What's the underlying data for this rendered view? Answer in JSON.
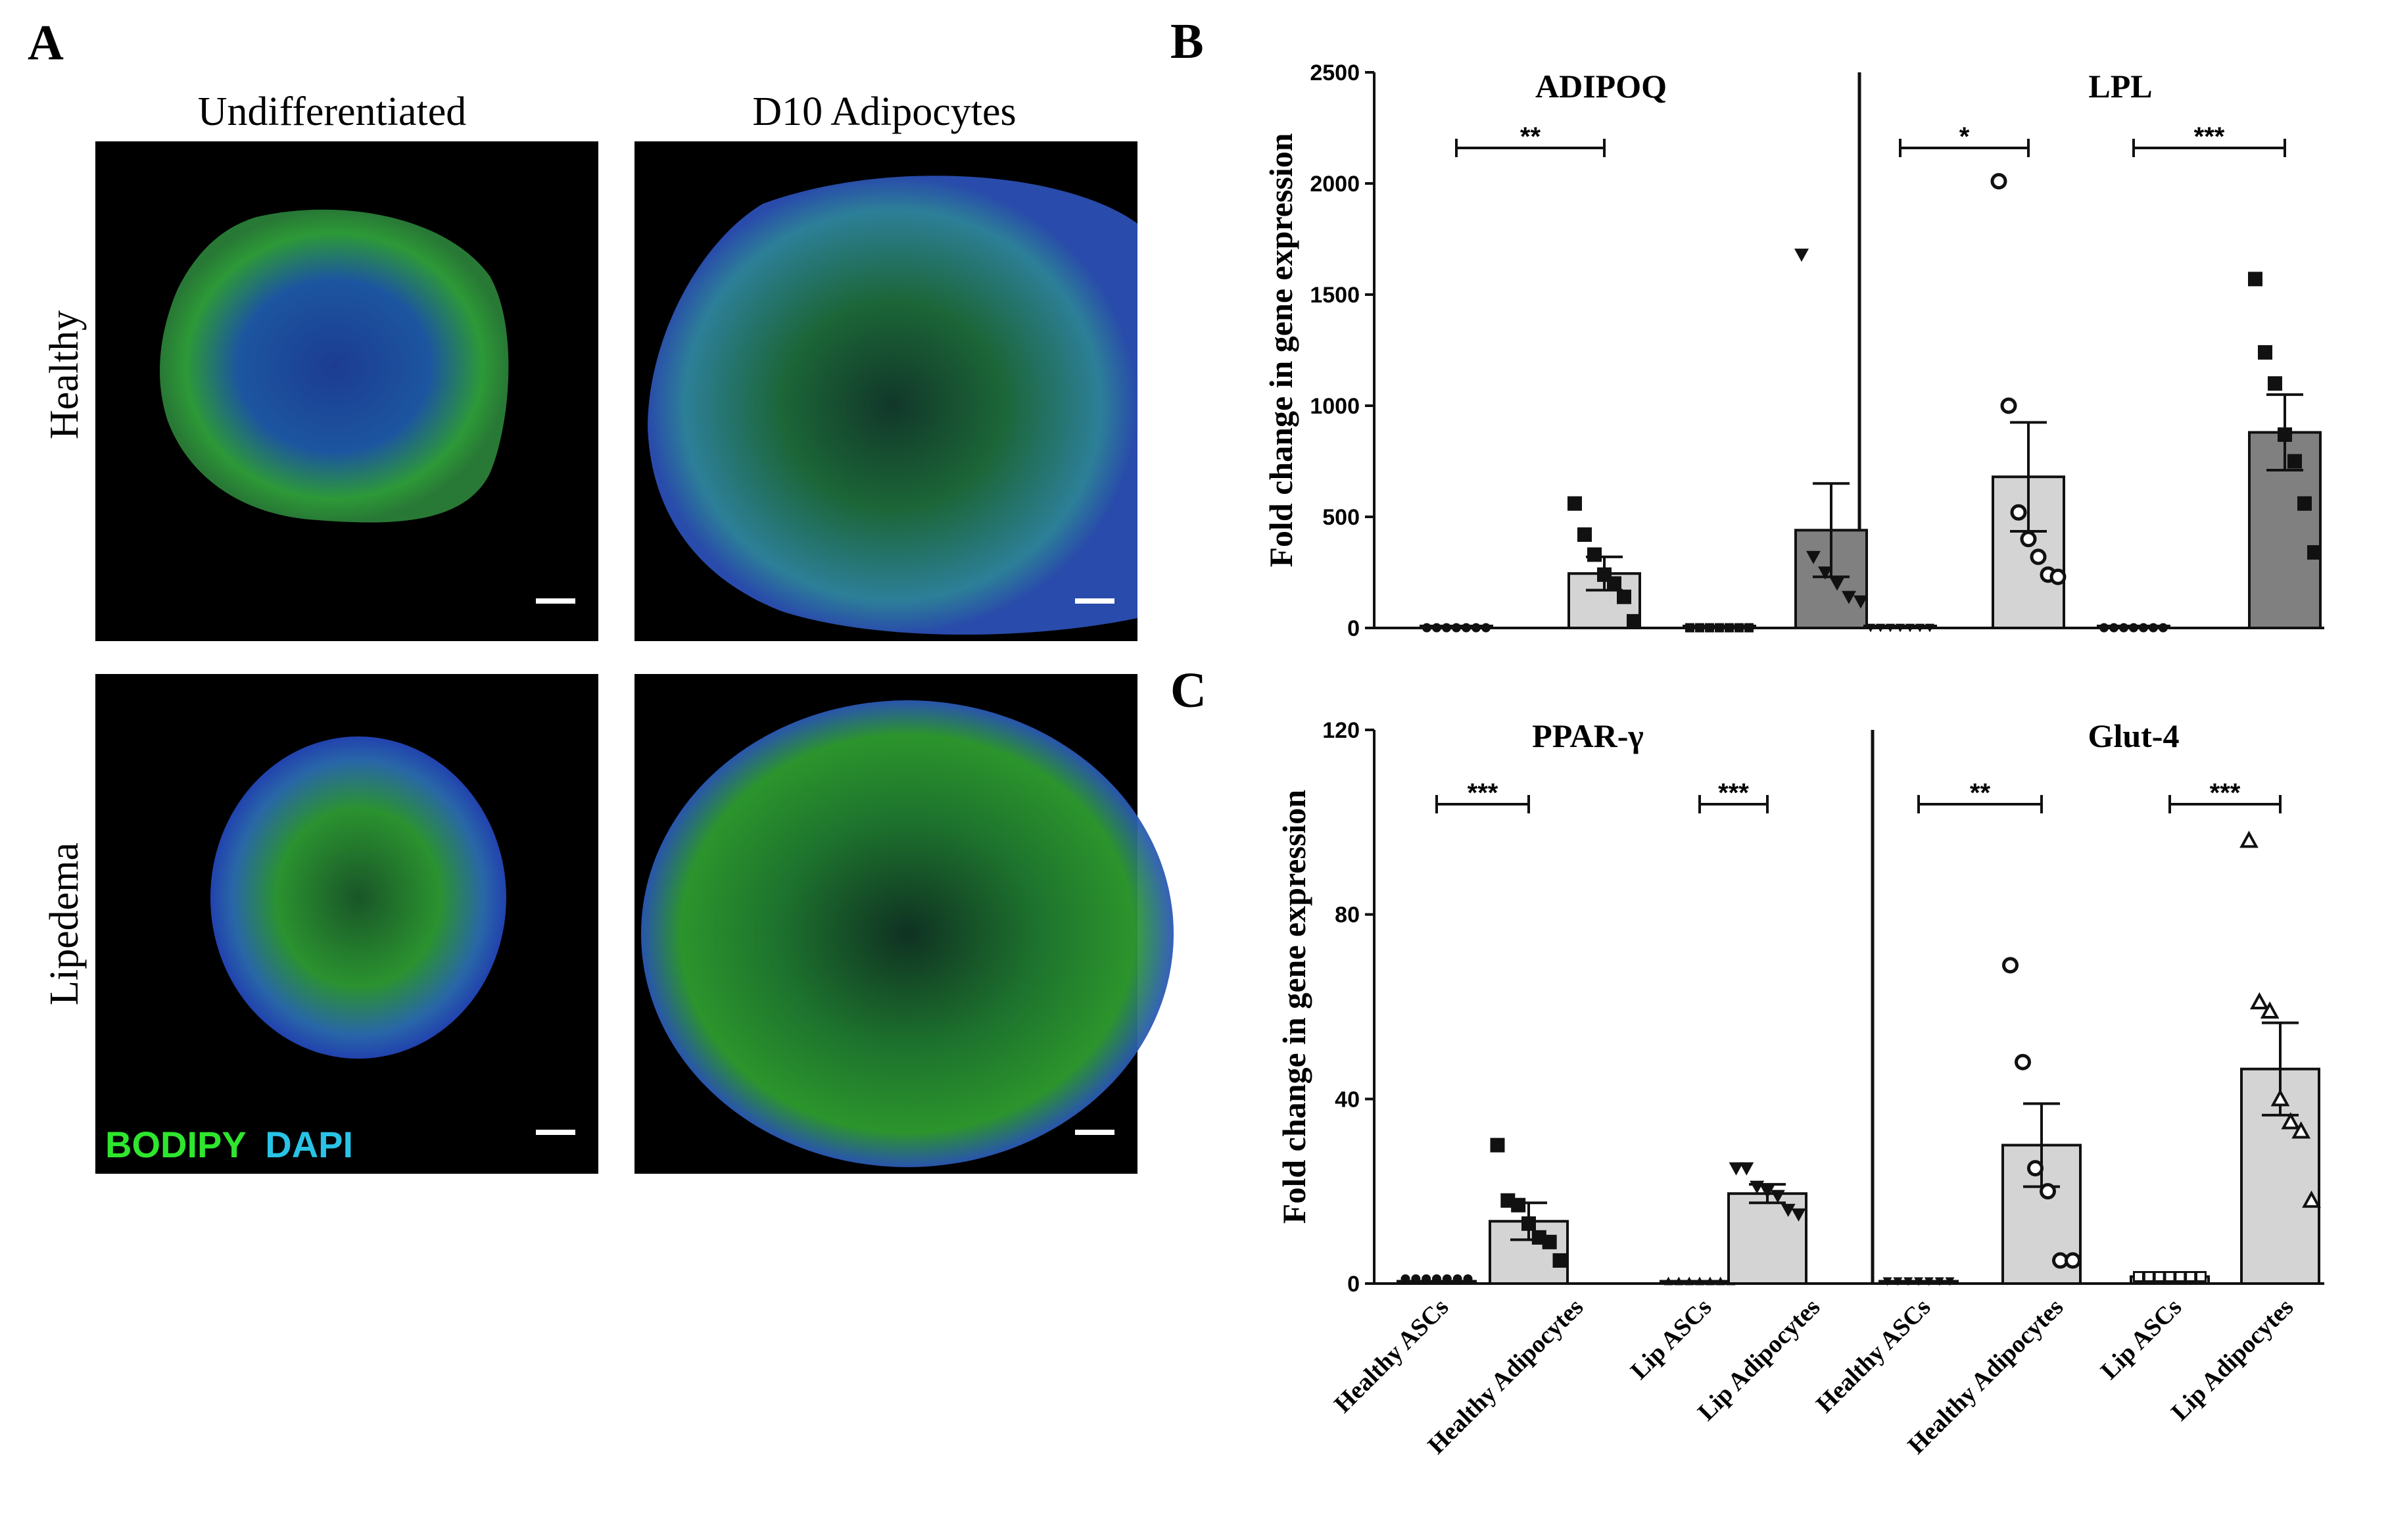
{
  "panel_a": {
    "letter": "A",
    "columns": [
      "Undifferentiated",
      "D10 Adipocytes"
    ],
    "rows": [
      "Healthy",
      "Lipedema"
    ],
    "stain_labels": [
      {
        "text": "BODIPY",
        "color": "#2ee62e"
      },
      {
        "text": "DAPI",
        "color": "#29c3e6"
      }
    ]
  },
  "panel_b": {
    "letter": "B"
  },
  "panel_c": {
    "letter": "C"
  },
  "chart_data": [
    {
      "type": "bar",
      "panel": "B",
      "ylabel": "Fold change in gene expression",
      "ylim": [
        0,
        2500
      ],
      "yticks": [
        0,
        500,
        1000,
        1500,
        2000,
        2500
      ],
      "categories": [
        "Healthy ASCs",
        "Healthy Adipocytes",
        "Lip ASCs",
        "Lip Adipocytes"
      ],
      "genes": [
        {
          "name": "ADIPOQ",
          "means": [
            2,
            245,
            2,
            440
          ],
          "sem": [
            0,
            75,
            0,
            210
          ],
          "bar_colors": [
            "#e5e5e5",
            "#d4d4d4",
            "#9a9a9a",
            "#808080"
          ],
          "points": [
            {
              "marker": "circle-filled",
              "values": [
                1,
                1,
                1,
                1,
                1,
                1,
                1
              ]
            },
            {
              "marker": "square",
              "values": [
                560,
                420,
                330,
                240,
                200,
                140,
                30
              ]
            },
            {
              "marker": "square-small",
              "values": [
                1,
                1,
                1,
                1,
                1,
                1,
                1
              ]
            },
            {
              "marker": "triangle-down",
              "values": [
                1680,
                320,
                250,
                200,
                140,
                120
              ]
            }
          ],
          "significance": [
            {
              "from": 0,
              "to": 1,
              "label": "**"
            }
          ]
        },
        {
          "name": "LPL",
          "means": [
            2,
            680,
            2,
            880
          ],
          "sem": [
            0,
            245,
            0,
            170
          ],
          "bar_colors": [
            "#e5e5e5",
            "#d4d4d4",
            "#9a9a9a",
            "#808080"
          ],
          "points": [
            {
              "marker": "triangle-down-small",
              "values": [
                1,
                1,
                1,
                1,
                1,
                1,
                1
              ]
            },
            {
              "marker": "circle-open",
              "values": [
                2010,
                1000,
                520,
                400,
                320,
                240,
                230
              ]
            },
            {
              "marker": "circle-filled",
              "values": [
                1,
                1,
                1,
                1,
                1,
                1,
                1
              ]
            },
            {
              "marker": "square",
              "values": [
                1570,
                1240,
                1100,
                870,
                750,
                560,
                340
              ]
            }
          ],
          "significance": [
            {
              "from": 0,
              "to": 1,
              "label": "*"
            },
            {
              "from": 2,
              "to": 3,
              "label": "***"
            }
          ]
        }
      ]
    },
    {
      "type": "bar",
      "panel": "C",
      "ylabel": "Fold change in gene expression",
      "ylim": [
        0,
        120
      ],
      "yticks": [
        0,
        40,
        80,
        120
      ],
      "categories": [
        "Healthy ASCs",
        "Healthy Adipocytes",
        "Lip ASCs",
        "Lip Adipocytes"
      ],
      "genes": [
        {
          "name": "PPAR-γ",
          "means": [
            0.5,
            13.5,
            0.5,
            19.5
          ],
          "sem": [
            0,
            4,
            0,
            2
          ],
          "bar_colors": [
            "#d4d4d4",
            "#d4d4d4",
            "#d4d4d4",
            "#d4d4d4"
          ],
          "points": [
            {
              "marker": "circle-filled",
              "values": [
                1,
                1,
                1,
                1,
                1,
                1,
                1
              ]
            },
            {
              "marker": "square",
              "values": [
                30,
                18,
                17,
                13,
                10,
                9,
                5
              ]
            },
            {
              "marker": "triangle-up-small",
              "values": [
                0.5,
                0.5,
                0.5,
                0.5,
                0.5,
                0.5,
                0.5
              ]
            },
            {
              "marker": "triangle-down",
              "values": [
                25,
                25,
                21,
                20,
                19,
                16,
                15
              ]
            }
          ],
          "significance": [
            {
              "from": 0,
              "to": 1,
              "label": "***"
            },
            {
              "from": 2,
              "to": 3,
              "label": "***"
            }
          ]
        },
        {
          "name": "Glut-4",
          "means": [
            0.5,
            30,
            1.5,
            46.5
          ],
          "sem": [
            0,
            9,
            0,
            10
          ],
          "bar_colors": [
            "#d4d4d4",
            "#d4d4d4",
            "#d4d4d4",
            "#d4d4d4"
          ],
          "points": [
            {
              "marker": "triangle-down-small",
              "values": [
                0.5,
                0.5,
                0.5,
                0.5,
                0.5,
                0.5,
                0.5
              ]
            },
            {
              "marker": "circle-open",
              "values": [
                69,
                48,
                25,
                20,
                5,
                5
              ]
            },
            {
              "marker": "square-open",
              "values": [
                1.5,
                1.5,
                1.5,
                1.5,
                1.5,
                1.5,
                1.5
              ]
            },
            {
              "marker": "triangle-up-open",
              "values": [
                96,
                61,
                59,
                40,
                35,
                33,
                18
              ]
            }
          ],
          "significance": [
            {
              "from": 0,
              "to": 1,
              "label": "**"
            },
            {
              "from": 2,
              "to": 3,
              "label": "***"
            }
          ]
        }
      ]
    }
  ]
}
